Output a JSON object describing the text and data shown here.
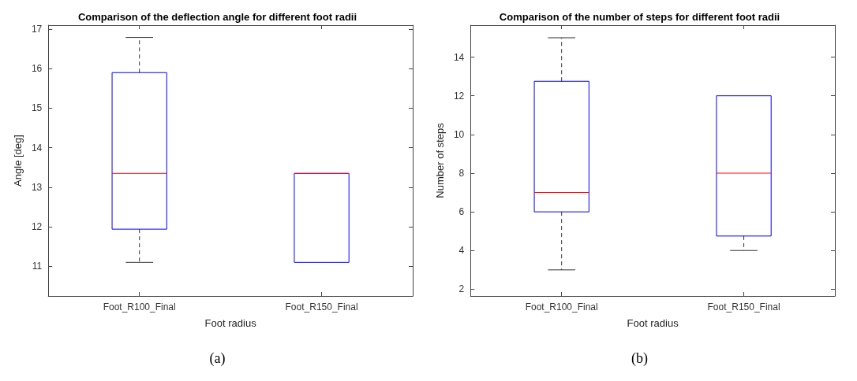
{
  "chart_data": [
    {
      "type": "box",
      "title": "Comparison of the deflection angle for different foot radii",
      "xlabel": "Foot radius",
      "ylabel": "Angle [deg]",
      "categories": [
        "Foot_R100_Final",
        "Foot_R150_Final"
      ],
      "ylim": [
        10.25,
        17.1
      ],
      "yticks": [
        11,
        12,
        13,
        14,
        15,
        16,
        17
      ],
      "grid": false,
      "annotations": [
        "(a)"
      ],
      "series": [
        {
          "color": "#0000ff",
          "boxes": [
            {
              "low": 11.1,
              "q1": 11.94,
              "median": 13.35,
              "q3": 15.9,
              "high": 16.79
            },
            {
              "low": 11.1,
              "q1": 11.1,
              "median": 13.35,
              "q3": 13.35,
              "high": 13.35
            }
          ]
        }
      ]
    },
    {
      "type": "box",
      "title": "Comparison of the number of steps for different foot radii",
      "xlabel": "Foot radius",
      "ylabel": "Number of steps",
      "categories": [
        "Foot_R100_Final",
        "Foot_R150_Final"
      ],
      "ylim": [
        1.65,
        15.65
      ],
      "yticks": [
        2,
        4,
        6,
        8,
        10,
        12,
        14
      ],
      "grid": false,
      "annotations": [
        "(b)"
      ],
      "series": [
        {
          "color": "#0000ff",
          "boxes": [
            {
              "low": 3,
              "q1": 6,
              "median": 7,
              "q3": 12.75,
              "high": 15
            },
            {
              "low": 4,
              "q1": 4.75,
              "median": 8,
              "q3": 12,
              "high": 12
            }
          ]
        }
      ]
    }
  ]
}
